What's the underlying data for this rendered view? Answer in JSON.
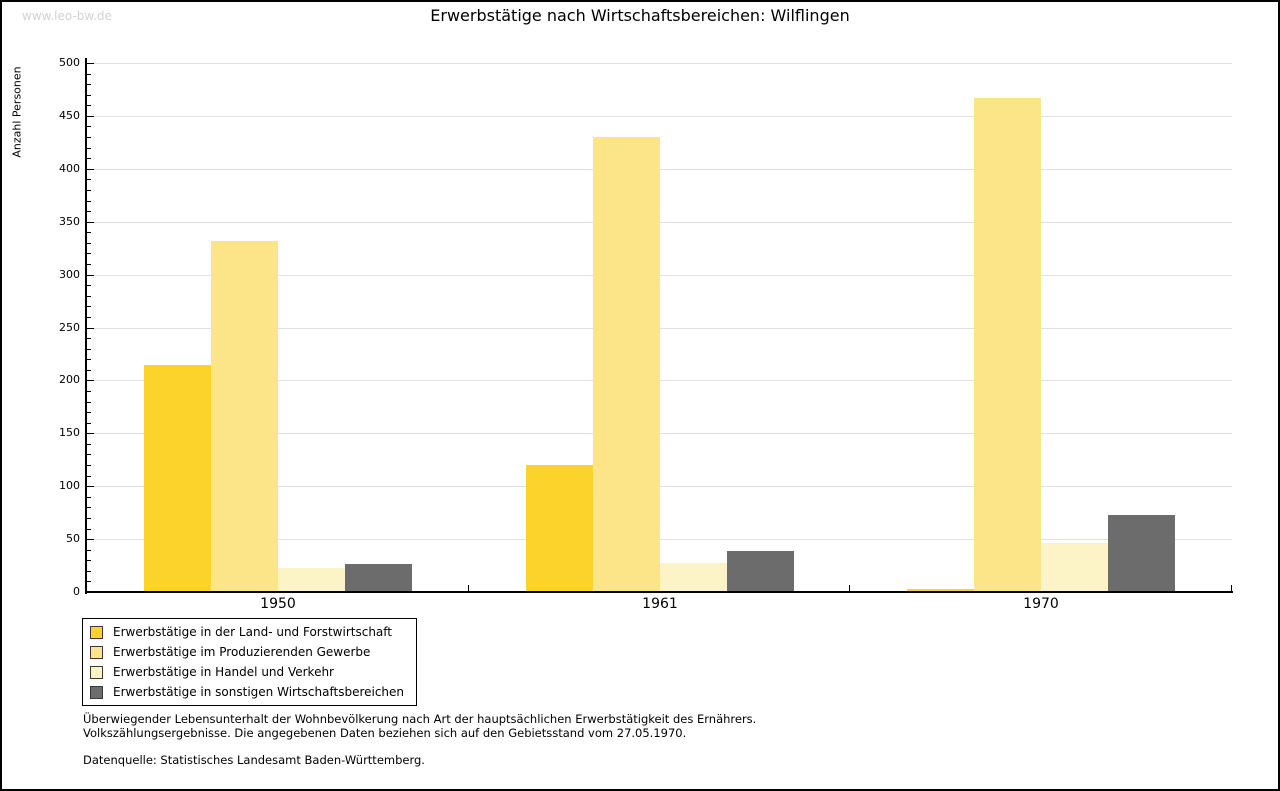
{
  "watermark": "www.leo-bw.de",
  "chart_data": {
    "type": "bar",
    "title": "Erwerbstätige nach Wirtschaftsbereichen: Wilflingen",
    "xlabel": "",
    "ylabel": "Anzahl Personen",
    "ylim": [
      0,
      500
    ],
    "ytick_step": 50,
    "yminor_tick_step": 10,
    "grid": true,
    "legend_position": "bottom-left",
    "categories": [
      "1950",
      "1961",
      "1970"
    ],
    "series": [
      {
        "name": "Erwerbstätige in der Land- und Forstwirtschaft",
        "color": "#FBD32B",
        "values": [
          215,
          120,
          3
        ]
      },
      {
        "name": "Erwerbstätige im Produzierenden Gewerbe",
        "color": "#FCE588",
        "values": [
          332,
          430,
          467
        ]
      },
      {
        "name": "Erwerbstätige in Handel und Verkehr",
        "color": "#FCF3C6",
        "values": [
          23,
          27,
          46
        ]
      },
      {
        "name": "Erwerbstätige in sonstigen Wirtschaftsbereichen",
        "color": "#6C6C6C",
        "values": [
          26,
          39,
          73
        ]
      }
    ],
    "colors": {
      "axis": "#000000",
      "gridline": "#e0e0e0",
      "watermark_text": "#d2d2d2"
    }
  },
  "footer": {
    "line1": "Überwiegender Lebensunterhalt der Wohnbevölkerung nach Art der hauptsächlichen Erwerbstätigkeit des Ernährers.",
    "line2": "Volkszählungsergebnisse. Die angegebenen Daten beziehen sich auf den Gebietsstand vom 27.05.1970.",
    "source": "Datenquelle: Statistisches Landesamt Baden-Württemberg."
  }
}
